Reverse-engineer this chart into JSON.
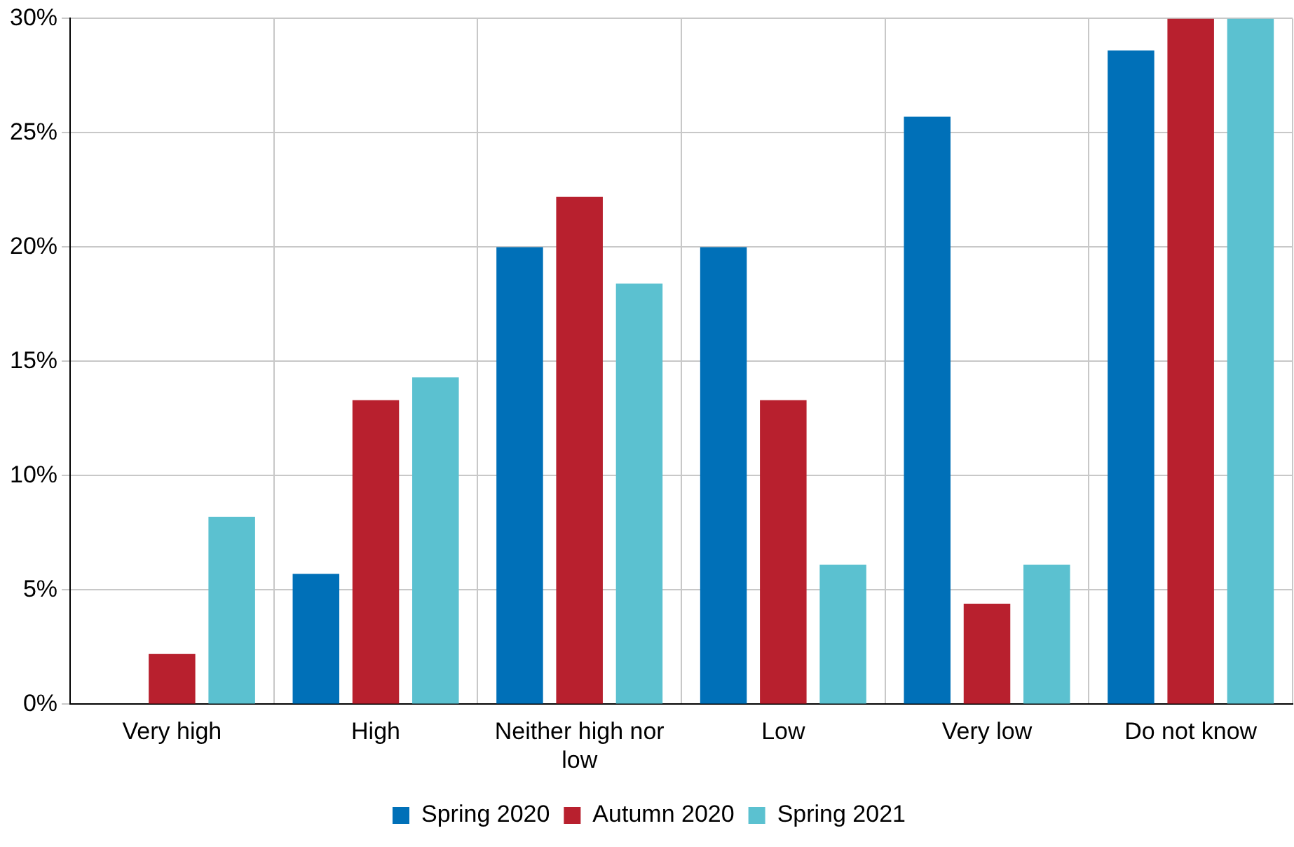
{
  "chart_data": {
    "type": "bar",
    "categories": [
      "Very high",
      "High",
      "Neither high nor low",
      "Low",
      "Very low",
      "Do not know"
    ],
    "series": [
      {
        "name": "Spring 2020",
        "color": "#0070b8",
        "values": [
          0,
          5.7,
          20.0,
          20.0,
          25.7,
          28.6
        ]
      },
      {
        "name": "Autumn 2020",
        "color": "#b8202e",
        "values": [
          2.2,
          13.3,
          22.2,
          13.3,
          4.4,
          30
        ]
      },
      {
        "name": "Spring 2021",
        "color": "#5bc1d0",
        "values": [
          8.2,
          14.3,
          18.4,
          6.1,
          6.1,
          30
        ]
      }
    ],
    "ylim": [
      0,
      30
    ],
    "yticks": [
      {
        "value": 0,
        "label": "0%"
      },
      {
        "value": 5,
        "label": "5%"
      },
      {
        "value": 10,
        "label": "10%"
      },
      {
        "value": 15,
        "label": "15%"
      },
      {
        "value": 20,
        "label": "20%"
      },
      {
        "value": 25,
        "label": "25%"
      },
      {
        "value": 30,
        "label": "30%"
      }
    ],
    "grid": true,
    "legend": "bottom"
  }
}
